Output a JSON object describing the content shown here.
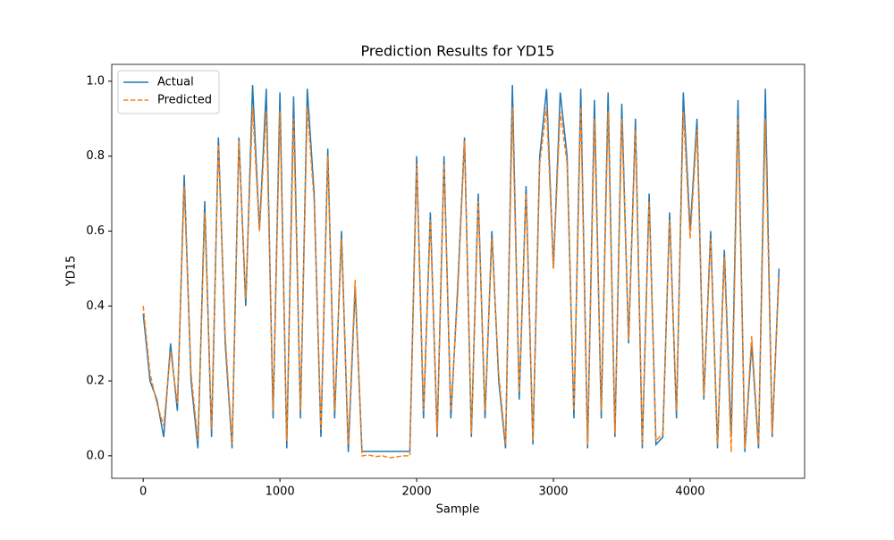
{
  "chart_data": {
    "type": "line",
    "title": "Prediction Results for YD15",
    "x_label": "Sample",
    "y_label": "YD15",
    "x": [
      0,
      50,
      100,
      150,
      200,
      250,
      300,
      350,
      400,
      450,
      500,
      550,
      600,
      650,
      700,
      750,
      800,
      850,
      900,
      950,
      1000,
      1050,
      1100,
      1150,
      1200,
      1250,
      1300,
      1350,
      1400,
      1450,
      1500,
      1550,
      1600,
      1650,
      1700,
      1750,
      1800,
      1850,
      1900,
      1950,
      2000,
      2050,
      2100,
      2150,
      2200,
      2250,
      2300,
      2350,
      2400,
      2450,
      2500,
      2550,
      2600,
      2650,
      2700,
      2750,
      2800,
      2850,
      2900,
      2950,
      3000,
      3050,
      3100,
      3150,
      3200,
      3250,
      3300,
      3350,
      3400,
      3450,
      3500,
      3550,
      3600,
      3650,
      3700,
      3750,
      3800,
      3850,
      3900,
      3950,
      4000,
      4050,
      4100,
      4150,
      4200,
      4250,
      4300,
      4350,
      4400,
      4450,
      4500,
      4550,
      4600,
      4650
    ],
    "series": [
      {
        "name": "Actual",
        "color": "#1f77b4",
        "dash": false,
        "values": [
          0.38,
          0.2,
          0.15,
          0.05,
          0.3,
          0.12,
          0.75,
          0.2,
          0.02,
          0.68,
          0.05,
          0.85,
          0.3,
          0.02,
          0.85,
          0.4,
          0.99,
          0.6,
          0.98,
          0.1,
          0.97,
          0.02,
          0.96,
          0.1,
          0.98,
          0.7,
          0.05,
          0.82,
          0.1,
          0.6,
          0.01,
          0.45,
          0.012,
          0.012,
          0.012,
          0.012,
          0.012,
          0.012,
          0.012,
          0.012,
          0.8,
          0.1,
          0.65,
          0.05,
          0.8,
          0.1,
          0.45,
          0.85,
          0.05,
          0.7,
          0.1,
          0.6,
          0.2,
          0.02,
          0.99,
          0.15,
          0.72,
          0.03,
          0.8,
          0.98,
          0.5,
          0.97,
          0.8,
          0.1,
          0.98,
          0.02,
          0.95,
          0.1,
          0.97,
          0.05,
          0.94,
          0.3,
          0.9,
          0.02,
          0.7,
          0.03,
          0.05,
          0.65,
          0.1,
          0.97,
          0.6,
          0.9,
          0.15,
          0.6,
          0.02,
          0.55,
          0.05,
          0.95,
          0.01,
          0.3,
          0.02,
          0.98,
          0.05,
          0.5
        ]
      },
      {
        "name": "Predicted",
        "color": "#ff7f0e",
        "dash": true,
        "values": [
          0.4,
          0.22,
          0.14,
          0.08,
          0.28,
          0.14,
          0.72,
          0.22,
          0.04,
          0.65,
          0.07,
          0.83,
          0.32,
          0.03,
          0.84,
          0.42,
          0.93,
          0.6,
          0.92,
          0.12,
          0.92,
          0.04,
          0.9,
          0.12,
          0.93,
          0.68,
          0.07,
          0.8,
          0.12,
          0.58,
          0.03,
          0.47,
          0.0,
          0.002,
          -0.002,
          0.0,
          -0.005,
          -0.003,
          0.0,
          0.0,
          0.78,
          0.12,
          0.63,
          0.06,
          0.78,
          0.12,
          0.43,
          0.84,
          0.06,
          0.68,
          0.12,
          0.58,
          0.22,
          0.03,
          0.93,
          0.17,
          0.7,
          0.04,
          0.78,
          0.93,
          0.5,
          0.92,
          0.78,
          0.12,
          0.93,
          0.03,
          0.9,
          0.12,
          0.92,
          0.06,
          0.9,
          0.31,
          0.87,
          0.03,
          0.68,
          0.04,
          0.06,
          0.63,
          0.12,
          0.92,
          0.58,
          0.87,
          0.16,
          0.58,
          0.03,
          0.53,
          0.01,
          0.9,
          0.02,
          0.32,
          0.03,
          0.9,
          0.06,
          0.48
        ]
      }
    ],
    "xlim": [
      -230,
      4837
    ],
    "xticks": [
      0,
      1000,
      2000,
      3000,
      4000
    ],
    "ylim": [
      -0.06,
      1.045
    ],
    "yticks": [
      {
        "value": 0,
        "label": "0.0"
      },
      {
        "value": 0.2,
        "label": "0.2"
      },
      {
        "value": 0.4,
        "label": "0.4"
      },
      {
        "value": 0.6,
        "label": "0.6"
      },
      {
        "value": 0.8,
        "label": "0.8"
      },
      {
        "value": 1,
        "label": "1.0"
      }
    ],
    "legend": "upper left"
  }
}
